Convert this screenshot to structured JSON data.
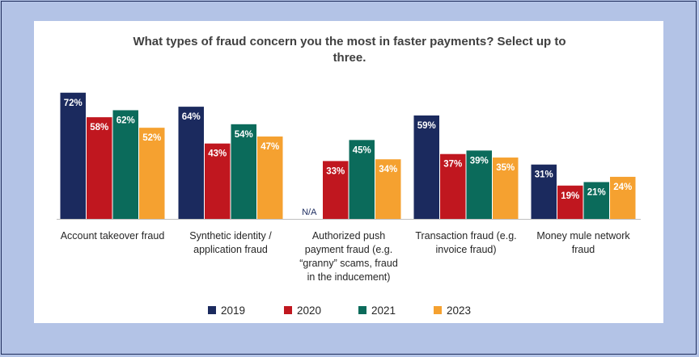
{
  "chart_data": {
    "type": "bar",
    "title": "What types of fraud concern you the most in faster payments? Select up to three.",
    "title_lines": [
      "What types of fraud concern you the most in faster payments? Select up to",
      "three."
    ],
    "categories": [
      "Account takeover fraud",
      "Synthetic identity / application fraud",
      "Authorized push payment fraud (e.g. “granny” scams, fraud in the inducement)",
      "Transaction fraud (e.g. invoice fraud)",
      "Money mule network fraud"
    ],
    "category_lines": [
      [
        "Account takeover fraud"
      ],
      [
        "Synthetic identity /",
        "application fraud"
      ],
      [
        "Authorized push",
        "payment fraud (e.g.",
        "“granny” scams, fraud",
        "in the inducement)"
      ],
      [
        "Transaction fraud (e.g.",
        "invoice fraud)"
      ],
      [
        "Money mule network",
        "fraud"
      ]
    ],
    "series": [
      {
        "name": "2019",
        "color": "#1b2a5e",
        "values": [
          72,
          64,
          null,
          59,
          31
        ],
        "labels": [
          "72%",
          "64%",
          "N/A",
          "59%",
          "31%"
        ]
      },
      {
        "name": "2020",
        "color": "#c0171f",
        "values": [
          58,
          43,
          33,
          37,
          19
        ],
        "labels": [
          "58%",
          "43%",
          "33%",
          "37%",
          "19%"
        ]
      },
      {
        "name": "2021",
        "color": "#0b6b5b",
        "values": [
          62,
          54,
          45,
          39,
          21
        ],
        "labels": [
          "62%",
          "54%",
          "45%",
          "39%",
          "21%"
        ]
      },
      {
        "name": "2023",
        "color": "#f5a130",
        "values": [
          52,
          47,
          34,
          35,
          24
        ],
        "labels": [
          "52%",
          "47%",
          "34%",
          "35%",
          "24%"
        ]
      }
    ],
    "ylim": [
      0,
      100
    ],
    "unit": "%",
    "grid": false,
    "legend_position": "bottom"
  }
}
